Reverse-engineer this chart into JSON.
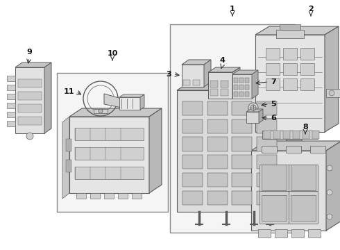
{
  "bg_color": "#ffffff",
  "lc": "#5a5a5a",
  "lc_dark": "#333333",
  "fill_light": "#e8e8e8",
  "fill_mid": "#d0d0d0",
  "fill_dark": "#b8b8b8",
  "fill_box": "#f2f2f2",
  "label_fs": 8,
  "label_fw": "bold",
  "label_color": "#111111",
  "arrow_color": "#333333"
}
